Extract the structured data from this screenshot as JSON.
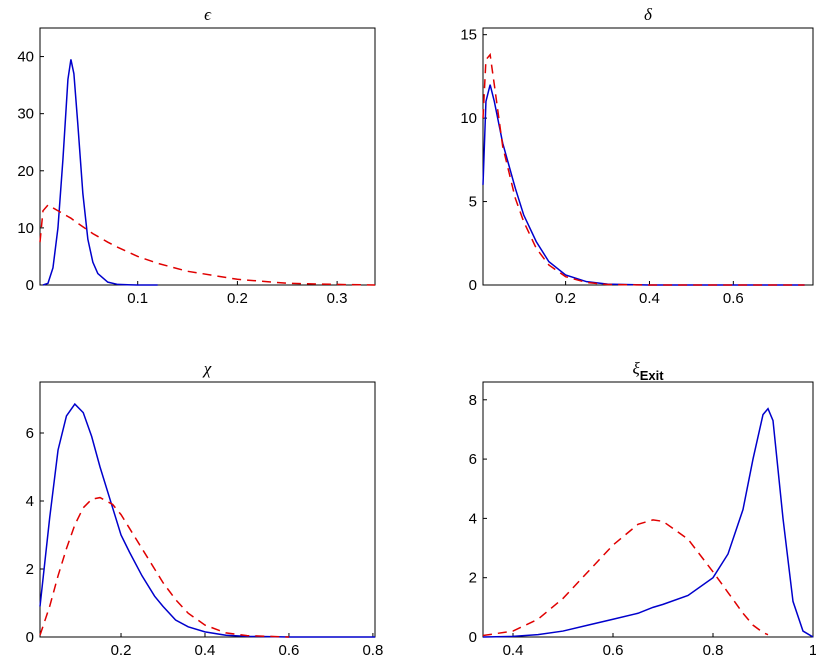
{
  "chart_data": [
    {
      "type": "line",
      "title": "ϵ",
      "x": [
        0.002,
        0.005,
        0.01,
        0.015,
        0.02,
        0.025,
        0.03,
        0.033,
        0.036,
        0.04,
        0.045,
        0.05,
        0.055,
        0.06,
        0.07,
        0.08,
        0.1,
        0.12,
        0.15,
        0.2,
        0.25,
        0.3,
        0.338
      ],
      "series": [
        {
          "color": "#0000cc",
          "line_style": "solid",
          "values": [
            null,
            0,
            0.3,
            3,
            10,
            22,
            36,
            39.5,
            37,
            28,
            16,
            8,
            4,
            2,
            0.5,
            0.1,
            0,
            0,
            null,
            null,
            null,
            null,
            null
          ]
        },
        {
          "color": "#e00000",
          "line_style": "dashed",
          "values": [
            7.5,
            13,
            14,
            13.5,
            13,
            12.5,
            12,
            11.7,
            11.3,
            10.8,
            10.2,
            9.6,
            9,
            8.5,
            7.5,
            6.6,
            5,
            3.8,
            2.4,
            1,
            0.3,
            0.1,
            0
          ]
        }
      ],
      "xlim": [
        0.002,
        0.338
      ],
      "xticks": [
        0.1,
        0.2,
        0.3
      ],
      "ylim": [
        0,
        45
      ],
      "yticks": [
        0,
        10,
        20,
        30,
        40
      ]
    },
    {
      "type": "line",
      "title": "δ",
      "x": [
        0.003,
        0.01,
        0.02,
        0.03,
        0.05,
        0.08,
        0.1,
        0.13,
        0.16,
        0.2,
        0.25,
        0.3,
        0.4,
        0.5,
        0.6,
        0.77
      ],
      "series": [
        {
          "color": "#0000cc",
          "line_style": "solid",
          "values": [
            6,
            11,
            12,
            11,
            8.5,
            5.8,
            4.2,
            2.6,
            1.4,
            0.6,
            0.2,
            0.05,
            0,
            0,
            0,
            0
          ]
        },
        {
          "color": "#e00000",
          "line_style": "dashed",
          "values": [
            10,
            13.5,
            13.8,
            12,
            8.3,
            5.2,
            3.8,
            2.2,
            1.2,
            0.5,
            0.15,
            0.03,
            0,
            0,
            0,
            0
          ]
        }
      ],
      "xlim": [
        0.003,
        0.79
      ],
      "xticks": [
        0.2,
        0.4,
        0.6
      ],
      "ylim": [
        0,
        15.4
      ],
      "yticks": [
        0,
        5,
        10,
        15
      ]
    },
    {
      "type": "line",
      "title": "χ",
      "x": [
        0.007,
        0.03,
        0.05,
        0.07,
        0.09,
        0.11,
        0.13,
        0.15,
        0.18,
        0.2,
        0.22,
        0.25,
        0.28,
        0.3,
        0.33,
        0.36,
        0.4,
        0.45,
        0.5,
        0.6,
        0.7,
        0.805
      ],
      "series": [
        {
          "color": "#0000cc",
          "line_style": "solid",
          "values": [
            0.9,
            3.5,
            5.5,
            6.5,
            6.85,
            6.6,
            5.9,
            5,
            3.8,
            3,
            2.5,
            1.8,
            1.2,
            0.9,
            0.5,
            0.3,
            0.15,
            0.05,
            0.02,
            0,
            0,
            0
          ]
        },
        {
          "color": "#e00000",
          "line_style": "dashed",
          "values": [
            0.05,
            0.9,
            1.8,
            2.6,
            3.3,
            3.8,
            4.05,
            4.1,
            3.9,
            3.6,
            3.2,
            2.6,
            2,
            1.6,
            1.1,
            0.7,
            0.35,
            0.12,
            0.04,
            0,
            null,
            null
          ]
        }
      ],
      "xlim": [
        0.007,
        0.805
      ],
      "xticks": [
        0.2,
        0.4,
        0.6,
        0.8
      ],
      "ylim": [
        0,
        7.5
      ],
      "yticks": [
        0,
        2,
        4,
        6
      ]
    },
    {
      "type": "line",
      "title": "ξ",
      "title_subscript": "Exit",
      "x": [
        0.34,
        0.4,
        0.45,
        0.5,
        0.55,
        0.6,
        0.65,
        0.68,
        0.7,
        0.75,
        0.8,
        0.83,
        0.86,
        0.88,
        0.9,
        0.91,
        0.92,
        0.94,
        0.96,
        0.98,
        1.0
      ],
      "series": [
        {
          "color": "#0000cc",
          "line_style": "solid",
          "values": [
            0,
            0.02,
            0.08,
            0.2,
            0.4,
            0.6,
            0.8,
            1.0,
            1.1,
            1.4,
            2,
            2.8,
            4.3,
            6,
            7.5,
            7.7,
            7.3,
            4,
            1.2,
            0.2,
            0
          ]
        },
        {
          "color": "#e00000",
          "line_style": "dashed",
          "values": [
            0.05,
            0.2,
            0.6,
            1.3,
            2.2,
            3.1,
            3.8,
            3.95,
            3.9,
            3.3,
            2.2,
            1.5,
            0.8,
            0.4,
            0.15,
            0.08,
            null,
            null,
            null,
            null,
            null
          ]
        }
      ],
      "xlim": [
        0.34,
        1.0
      ],
      "xticks": [
        0.4,
        0.6,
        0.8,
        1
      ],
      "ylim": [
        0,
        8.6
      ],
      "yticks": [
        0,
        2,
        4,
        6,
        8
      ]
    }
  ]
}
